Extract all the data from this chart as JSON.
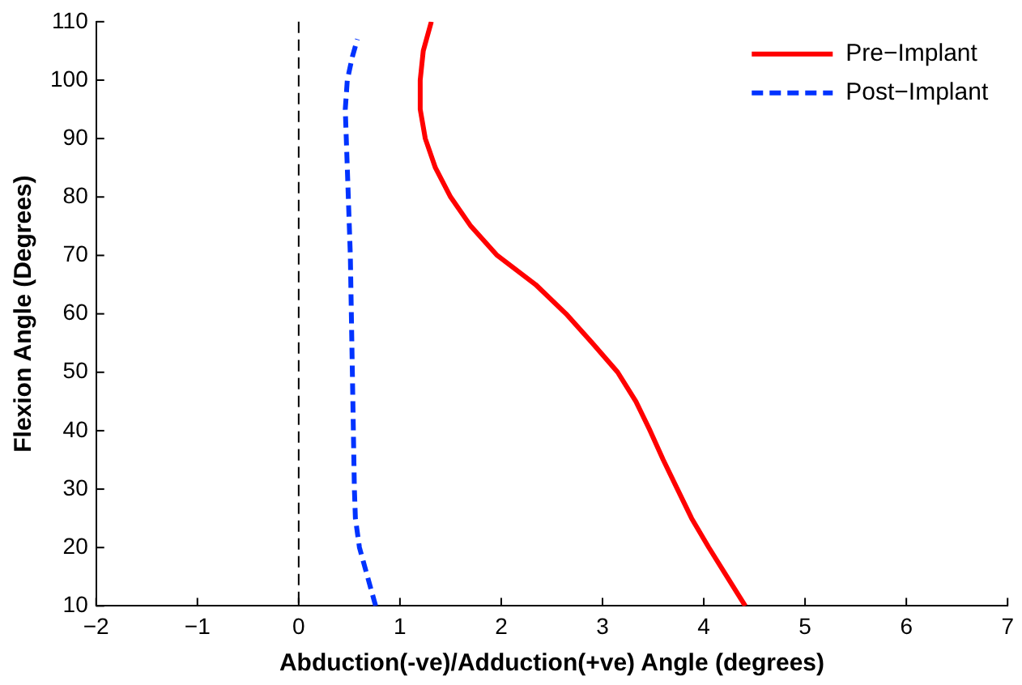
{
  "chart_data": {
    "type": "line",
    "xlabel": "Abduction(-ve)/Adduction(+ve) Angle (degrees)",
    "ylabel": "Flexion Angle (Degrees)",
    "xlim": [
      -2,
      7
    ],
    "xticks": [
      -2,
      -1,
      0,
      1,
      2,
      3,
      4,
      5,
      6,
      7
    ],
    "ylim": [
      10,
      110
    ],
    "yticks": [
      10,
      20,
      30,
      40,
      50,
      60,
      70,
      80,
      90,
      100,
      110
    ],
    "grid": false,
    "legend": "top right",
    "marker": "none",
    "ref_lines": [
      {
        "axis": "x",
        "value": 0,
        "color": "#000000",
        "line_style": "dashed"
      }
    ],
    "series": [
      {
        "name": "Pre−Implant",
        "color": "#ff0000",
        "line_style": "solid",
        "x": [
          4.41,
          4.23,
          4.05,
          3.88,
          3.74,
          3.6,
          3.47,
          3.33,
          3.15,
          2.9,
          2.64,
          2.34,
          1.96,
          1.7,
          1.5,
          1.35,
          1.25,
          1.2,
          1.2,
          1.23,
          1.31
        ],
        "values": [
          10,
          15,
          20,
          25,
          30,
          35,
          40,
          45,
          50,
          55,
          60,
          65,
          70,
          75,
          80,
          85,
          90,
          95,
          100,
          105,
          110
        ]
      },
      {
        "name": "Post−Implant",
        "color": "#0033ff",
        "line_style": "dashed",
        "x": [
          0.76,
          0.68,
          0.6,
          0.56,
          0.55,
          0.54,
          0.53,
          0.52,
          0.51,
          0.49,
          0.47,
          0.46,
          0.48,
          0.53,
          0.58
        ],
        "values": [
          10,
          15,
          20,
          25,
          30,
          40,
          50,
          60,
          70,
          80,
          90,
          95,
          100,
          104,
          107
        ]
      }
    ]
  }
}
